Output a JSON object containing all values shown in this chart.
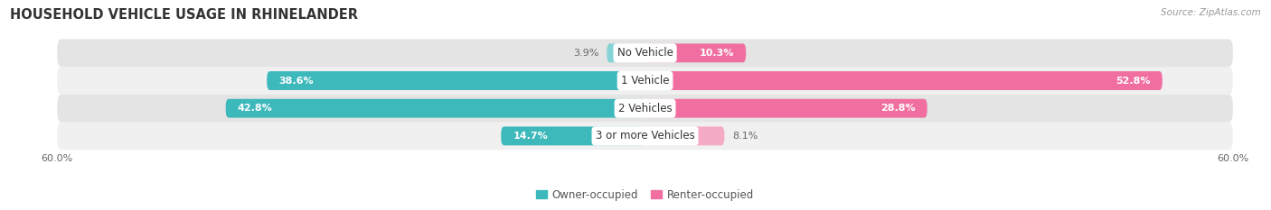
{
  "title": "HOUSEHOLD VEHICLE USAGE IN RHINELANDER",
  "source": "Source: ZipAtlas.com",
  "categories": [
    "No Vehicle",
    "1 Vehicle",
    "2 Vehicles",
    "3 or more Vehicles"
  ],
  "owner_values": [
    3.9,
    38.6,
    42.8,
    14.7
  ],
  "renter_values": [
    10.3,
    52.8,
    28.8,
    8.1
  ],
  "owner_color": "#3db8bb",
  "renter_color": "#f06fa0",
  "owner_color_light": "#85d4d6",
  "renter_color_light": "#f5aac6",
  "row_bg_odd": "#f0f0f0",
  "row_bg_even": "#e4e4e4",
  "max_val": 60.0,
  "legend_owner": "Owner-occupied",
  "legend_renter": "Renter-occupied",
  "title_fontsize": 10.5,
  "source_fontsize": 7.5,
  "label_fontsize": 8.0,
  "category_fontsize": 8.5,
  "legend_fontsize": 8.5,
  "axis_tick_fontsize": 8.0
}
